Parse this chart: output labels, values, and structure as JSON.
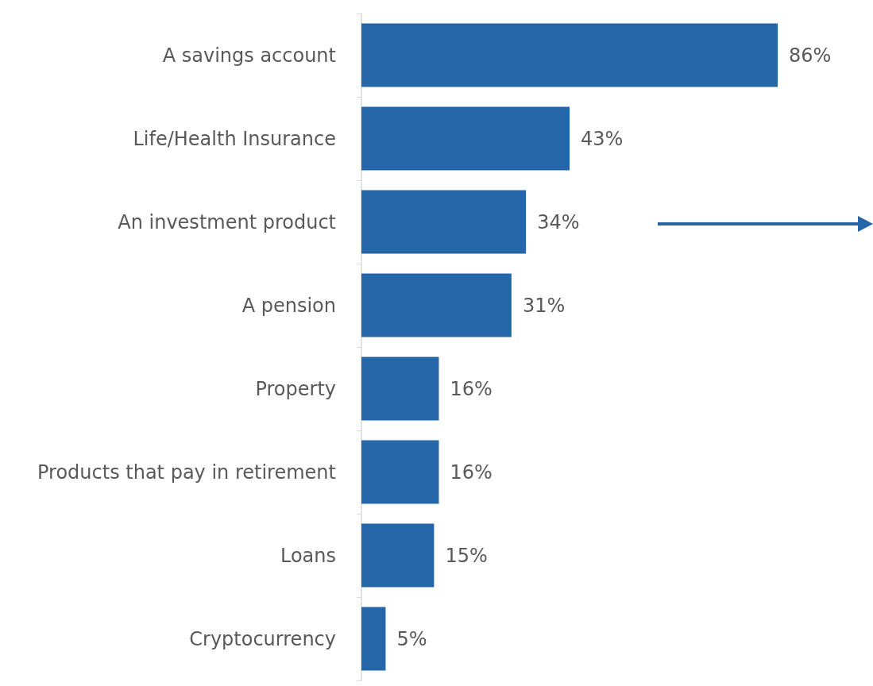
{
  "chart_data": {
    "type": "bar",
    "orientation": "horizontal",
    "categories": [
      "A savings account",
      "Life/Health Insurance",
      "An investment product",
      "A pension",
      "Property",
      "Products that pay in retirement",
      "Loans",
      "Cryptocurrency"
    ],
    "values": [
      86,
      43,
      34,
      31,
      16,
      16,
      15,
      5
    ],
    "value_labels": [
      "86%",
      "43%",
      "34%",
      "31%",
      "16%",
      "16%",
      "15%",
      "5%"
    ],
    "color": "#2566a8"
  }
}
